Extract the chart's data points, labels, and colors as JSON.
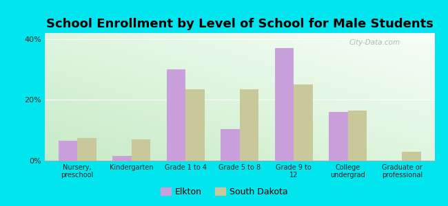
{
  "title": "School Enrollment by Level of School for Male Students",
  "categories": [
    "Nursery,\npreschool",
    "Kindergarten",
    "Grade 1 to 4",
    "Grade 5 to 8",
    "Grade 9 to\n12",
    "College\nundergrad",
    "Graduate or\nprofessional"
  ],
  "elkton_values": [
    6.5,
    1.5,
    30.0,
    10.5,
    37.0,
    16.0,
    0.0
  ],
  "sd_values": [
    7.5,
    7.0,
    23.5,
    23.5,
    25.0,
    16.5,
    3.0
  ],
  "elkton_color": "#c9a0dc",
  "sd_color": "#c8c89a",
  "background_color": "#00e5ee",
  "ylabel_ticks": [
    "0%",
    "20%",
    "40%"
  ],
  "yticks": [
    0,
    20,
    40
  ],
  "ylim": [
    0,
    42
  ],
  "legend_labels": [
    "Elkton",
    "South Dakota"
  ],
  "title_fontsize": 13,
  "watermark": "City-Data.com"
}
